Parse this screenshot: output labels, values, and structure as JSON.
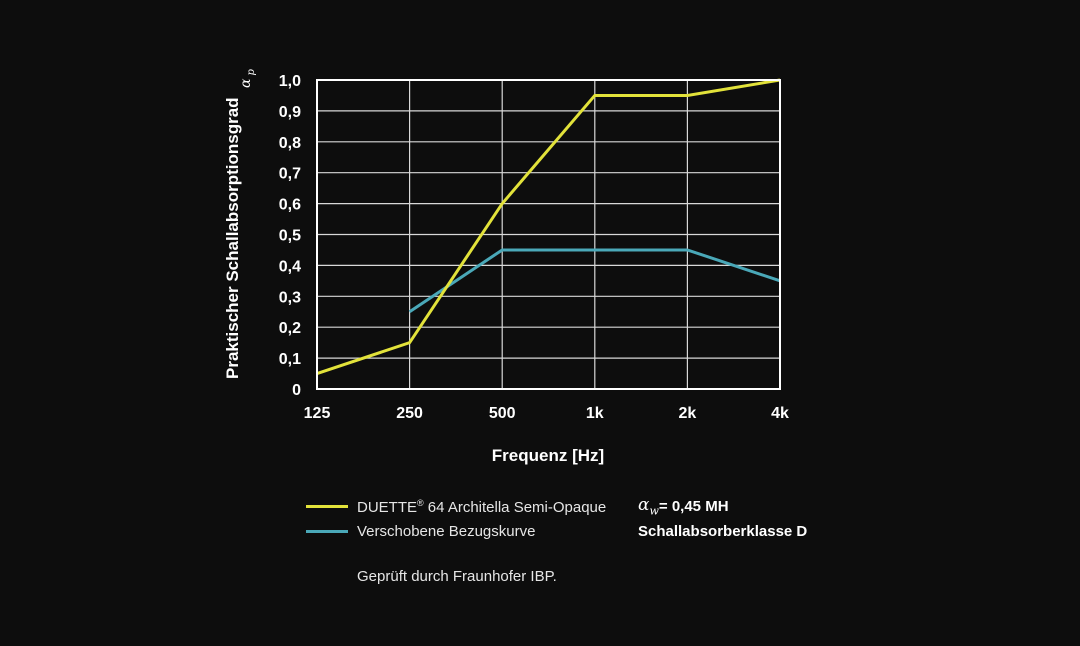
{
  "chart_data": {
    "type": "line",
    "x": [
      "125",
      "250",
      "500",
      "1k",
      "2k",
      "4k"
    ],
    "xlabel": "Frequenz [Hz]",
    "ylabel": "Praktischer Schallabsorptionsgrad",
    "ylabel_symbol": "α",
    "ylabel_symbol_sub": "p",
    "y_ticks": [
      "0",
      "0,1",
      "0,2",
      "0,3",
      "0,4",
      "0,5",
      "0,6",
      "0,7",
      "0,8",
      "0,9",
      "1,0"
    ],
    "ylim": [
      0,
      1.0
    ],
    "grid": true,
    "series": [
      {
        "name": "DUETTE® 64 Architella Semi-Opaque",
        "color": "#e2e23a",
        "values": [
          0.05,
          0.15,
          0.6,
          0.95,
          0.95,
          1.0
        ]
      },
      {
        "name": "Verschobene Bezugskurve",
        "color": "#4aa8b8",
        "values": [
          null,
          0.25,
          0.45,
          0.45,
          0.45,
          0.35
        ]
      }
    ]
  },
  "legend": {
    "items": [
      {
        "label": "DUETTE",
        "sup": "®",
        "label_rest": " 64 Architella Semi-Opaque",
        "color": "#e2e23a"
      },
      {
        "label": "Verschobene Bezugskurve",
        "sup": "",
        "label_rest": "",
        "color": "#4aa8b8"
      }
    ]
  },
  "rating": {
    "alpha_symbol": "α",
    "alpha_sub": "w",
    "value": " = 0,45 MH",
    "class_label": "Schallabsorberklasse D"
  },
  "note": "Geprüft durch Fraunhofer IBP."
}
